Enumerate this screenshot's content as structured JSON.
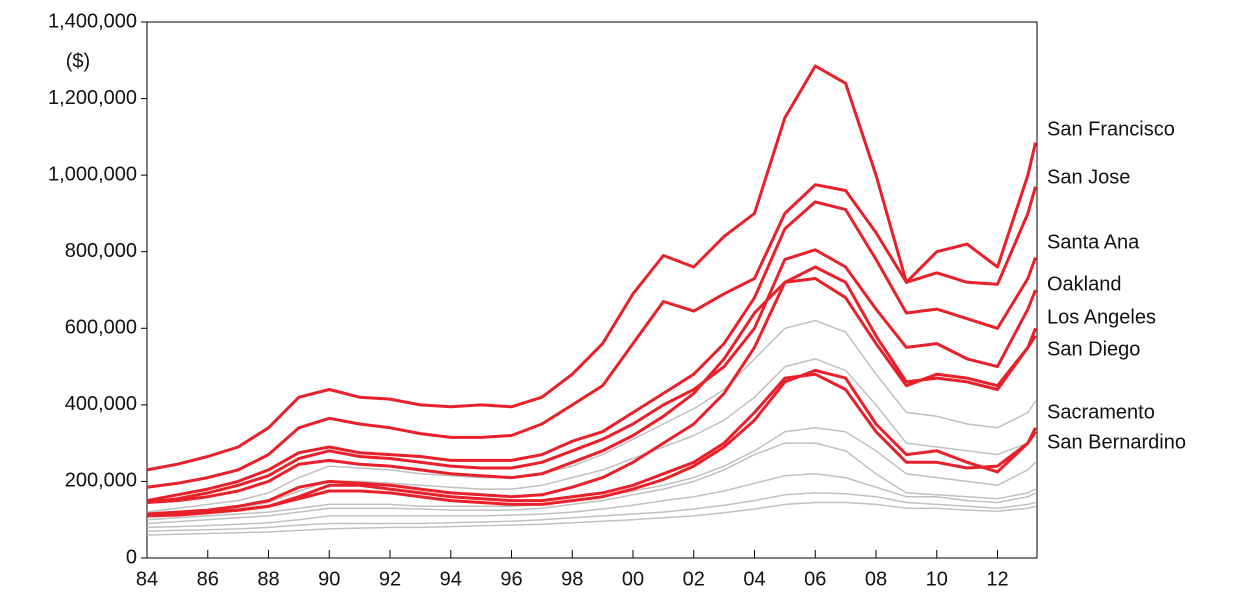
{
  "chart_data": {
    "type": "line",
    "y_label": "($)",
    "x": [
      1984,
      1985,
      1986,
      1987,
      1988,
      1989,
      1990,
      1991,
      1992,
      1993,
      1994,
      1995,
      1996,
      1997,
      1998,
      1999,
      2000,
      2001,
      2002,
      2003,
      2004,
      2005,
      2006,
      2007,
      2008,
      2009,
      2010,
      2011,
      2012,
      2013,
      2013.25
    ],
    "xlim": [
      1984,
      2013.3
    ],
    "xticks": [
      {
        "value": 1984,
        "label": "84"
      },
      {
        "value": 1986,
        "label": "86"
      },
      {
        "value": 1988,
        "label": "88"
      },
      {
        "value": 1990,
        "label": "90"
      },
      {
        "value": 1992,
        "label": "92"
      },
      {
        "value": 1994,
        "label": "94"
      },
      {
        "value": 1996,
        "label": "96"
      },
      {
        "value": 1998,
        "label": "98"
      },
      {
        "value": 2000,
        "label": "00"
      },
      {
        "value": 2002,
        "label": "02"
      },
      {
        "value": 2004,
        "label": "04"
      },
      {
        "value": 2006,
        "label": "06"
      },
      {
        "value": 2008,
        "label": "08"
      },
      {
        "value": 2010,
        "label": "10"
      },
      {
        "value": 2012,
        "label": "12"
      }
    ],
    "ylim": [
      0,
      1400000
    ],
    "yticks": [
      0,
      {
        "value": 200000,
        "label": "200,000"
      },
      {
        "value": 400000,
        "label": "400,000"
      },
      {
        "value": 600000,
        "label": "600,000"
      },
      {
        "value": 800000,
        "label": "800,000"
      },
      {
        "value": 1000000,
        "label": "1,000,000"
      },
      {
        "value": 1200000,
        "label": "1,200,000"
      },
      {
        "value": 1400000,
        "label": "1,400,000"
      }
    ],
    "series": [
      {
        "color": "#c0c0c0",
        "values": [
          100000,
          105000,
          110000,
          115000,
          120000,
          130000,
          140000,
          140000,
          140000,
          135000,
          135000,
          135000,
          135000,
          140000,
          150000,
          160000,
          175000,
          190000,
          210000,
          240000,
          280000,
          330000,
          340000,
          330000,
          280000,
          220000,
          210000,
          200000,
          190000,
          230000,
          250000
        ]
      },
      {
        "color": "#c0c0c0",
        "values": [
          80000,
          82000,
          85000,
          88000,
          92000,
          100000,
          110000,
          110000,
          110000,
          110000,
          110000,
          110000,
          112000,
          115000,
          120000,
          128000,
          138000,
          150000,
          160000,
          175000,
          195000,
          215000,
          220000,
          210000,
          185000,
          160000,
          160000,
          150000,
          145000,
          160000,
          170000
        ]
      },
      {
        "color": "#c0c0c0",
        "values": [
          70000,
          72000,
          74000,
          76000,
          80000,
          86000,
          90000,
          90000,
          90000,
          90000,
          92000,
          94000,
          96000,
          100000,
          105000,
          110000,
          115000,
          120000,
          128000,
          138000,
          150000,
          165000,
          170000,
          168000,
          160000,
          145000,
          140000,
          135000,
          130000,
          140000,
          145000
        ]
      },
      {
        "color": "#c0c0c0",
        "values": [
          120000,
          130000,
          140000,
          150000,
          170000,
          210000,
          240000,
          235000,
          230000,
          220000,
          215000,
          210000,
          210000,
          220000,
          240000,
          270000,
          310000,
          350000,
          390000,
          440000,
          520000,
          600000,
          620000,
          590000,
          480000,
          380000,
          370000,
          350000,
          340000,
          380000,
          410000
        ]
      },
      {
        "color": "#c0c0c0",
        "values": [
          90000,
          95000,
          100000,
          105000,
          110000,
          120000,
          130000,
          130000,
          130000,
          128000,
          125000,
          125000,
          125000,
          130000,
          140000,
          150000,
          165000,
          180000,
          200000,
          230000,
          270000,
          300000,
          300000,
          280000,
          220000,
          170000,
          165000,
          160000,
          155000,
          170000,
          180000
        ]
      },
      {
        "color": "#c0c0c0",
        "values": [
          60000,
          62000,
          64000,
          66000,
          68000,
          72000,
          76000,
          78000,
          80000,
          80000,
          82000,
          84000,
          86000,
          88000,
          92000,
          96000,
          100000,
          105000,
          110000,
          118000,
          128000,
          140000,
          145000,
          145000,
          140000,
          130000,
          130000,
          125000,
          122000,
          130000,
          135000
        ]
      },
      {
        "color": "#c0c0c0",
        "values": [
          110000,
          115000,
          120000,
          130000,
          145000,
          175000,
          200000,
          200000,
          195000,
          190000,
          185000,
          180000,
          180000,
          190000,
          210000,
          230000,
          260000,
          290000,
          320000,
          360000,
          420000,
          500000,
          520000,
          490000,
          400000,
          300000,
          290000,
          280000,
          270000,
          300000,
          320000
        ]
      },
      {
        "name": "San Francisco",
        "color": "#e8202a",
        "values": [
          230000,
          245000,
          265000,
          290000,
          340000,
          420000,
          440000,
          420000,
          415000,
          400000,
          395000,
          400000,
          395000,
          420000,
          480000,
          560000,
          690000,
          790000,
          760000,
          840000,
          900000,
          1150000,
          1285000,
          1240000,
          1000000,
          720000,
          800000,
          820000,
          760000,
          1000000,
          1085000
        ]
      },
      {
        "name": "San Jose",
        "color": "#e8202a",
        "values": [
          185000,
          195000,
          210000,
          230000,
          270000,
          340000,
          365000,
          350000,
          340000,
          325000,
          315000,
          315000,
          320000,
          350000,
          400000,
          450000,
          560000,
          670000,
          645000,
          690000,
          730000,
          900000,
          975000,
          960000,
          850000,
          720000,
          745000,
          720000,
          715000,
          900000,
          970000
        ]
      },
      {
        "name": "Santa Ana",
        "color": "#e8202a",
        "values": [
          150000,
          165000,
          180000,
          200000,
          230000,
          275000,
          290000,
          275000,
          270000,
          265000,
          255000,
          255000,
          255000,
          270000,
          305000,
          330000,
          380000,
          430000,
          480000,
          560000,
          680000,
          860000,
          930000,
          910000,
          780000,
          640000,
          650000,
          625000,
          600000,
          730000,
          785000
        ]
      },
      {
        "name": "Oakland",
        "color": "#e8202a",
        "values": [
          145000,
          155000,
          170000,
          190000,
          215000,
          260000,
          280000,
          265000,
          260000,
          250000,
          240000,
          235000,
          235000,
          250000,
          280000,
          310000,
          350000,
          400000,
          440000,
          500000,
          600000,
          780000,
          805000,
          760000,
          650000,
          550000,
          560000,
          520000,
          500000,
          650000,
          700000
        ]
      },
      {
        "name": "Los Angeles",
        "color": "#e8202a",
        "values": [
          115000,
          120000,
          125000,
          135000,
          150000,
          185000,
          200000,
          195000,
          190000,
          180000,
          170000,
          165000,
          160000,
          165000,
          185000,
          210000,
          250000,
          300000,
          350000,
          430000,
          550000,
          720000,
          760000,
          720000,
          580000,
          460000,
          470000,
          460000,
          440000,
          550000,
          600000
        ]
      },
      {
        "name": "San Diego",
        "color": "#e8202a",
        "values": [
          145000,
          150000,
          160000,
          175000,
          200000,
          245000,
          255000,
          245000,
          240000,
          230000,
          220000,
          215000,
          210000,
          220000,
          250000,
          280000,
          320000,
          370000,
          430000,
          520000,
          640000,
          720000,
          730000,
          680000,
          560000,
          450000,
          480000,
          470000,
          450000,
          550000,
          580000
        ]
      },
      {
        "name": "Sacramento",
        "color": "#e8202a",
        "values": [
          110000,
          115000,
          120000,
          125000,
          135000,
          160000,
          190000,
          190000,
          180000,
          170000,
          160000,
          155000,
          150000,
          150000,
          160000,
          170000,
          190000,
          220000,
          250000,
          300000,
          380000,
          470000,
          480000,
          440000,
          330000,
          250000,
          250000,
          235000,
          240000,
          300000,
          330000
        ]
      },
      {
        "name": "San Bernardino",
        "color": "#e8202a",
        "values": [
          110000,
          112000,
          118000,
          125000,
          135000,
          155000,
          175000,
          175000,
          170000,
          160000,
          150000,
          145000,
          140000,
          140000,
          150000,
          160000,
          180000,
          205000,
          240000,
          290000,
          360000,
          460000,
          490000,
          470000,
          350000,
          270000,
          280000,
          250000,
          225000,
          300000,
          340000
        ]
      }
    ]
  }
}
